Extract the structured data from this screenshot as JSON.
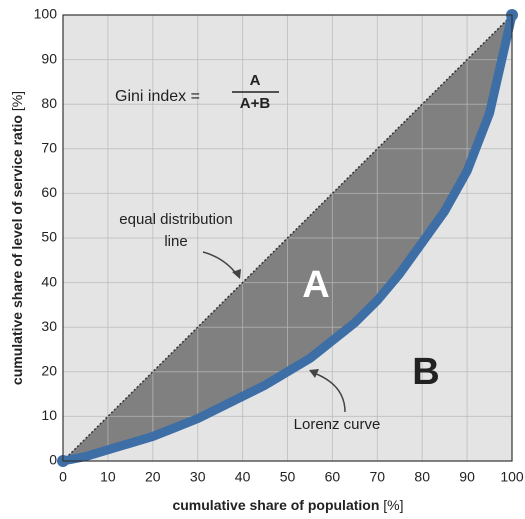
{
  "chart_data": {
    "type": "line",
    "x_label": "cumulative share of population",
    "x_label_unit": "[%]",
    "y_label": "cumulative share of level of service ratio",
    "y_label_unit": "[%]",
    "formula": {
      "lhs": "Gini index =",
      "numerator": "A",
      "denominator": "A+B"
    },
    "annotations": {
      "equal_line": [
        "equal distribution",
        "line"
      ],
      "lorenz": "Lorenz curve",
      "area_a": "A",
      "area_b": "B"
    },
    "x": [
      0,
      5,
      10,
      15,
      20,
      25,
      30,
      35,
      40,
      45,
      50,
      55,
      60,
      65,
      70,
      75,
      80,
      85,
      90,
      95,
      100
    ],
    "series": [
      {
        "name": "Lorenz curve",
        "color": "#3d6ea6",
        "values": [
          0,
          1,
          2.5,
          4,
          5.5,
          7.5,
          9.5,
          12,
          14.5,
          17,
          20,
          23,
          27,
          31,
          36,
          42,
          49,
          56,
          65,
          78,
          100
        ]
      }
    ],
    "equal_line": {
      "x": [
        0,
        100
      ],
      "values": [
        0,
        100
      ]
    },
    "xlim": [
      0,
      100
    ],
    "ylim": [
      0,
      100
    ],
    "xticks": [
      0,
      10,
      20,
      30,
      40,
      50,
      60,
      70,
      80,
      90,
      100
    ],
    "yticks": [
      0,
      10,
      20,
      30,
      40,
      50,
      60,
      70,
      80,
      90,
      100
    ],
    "grid": true
  }
}
